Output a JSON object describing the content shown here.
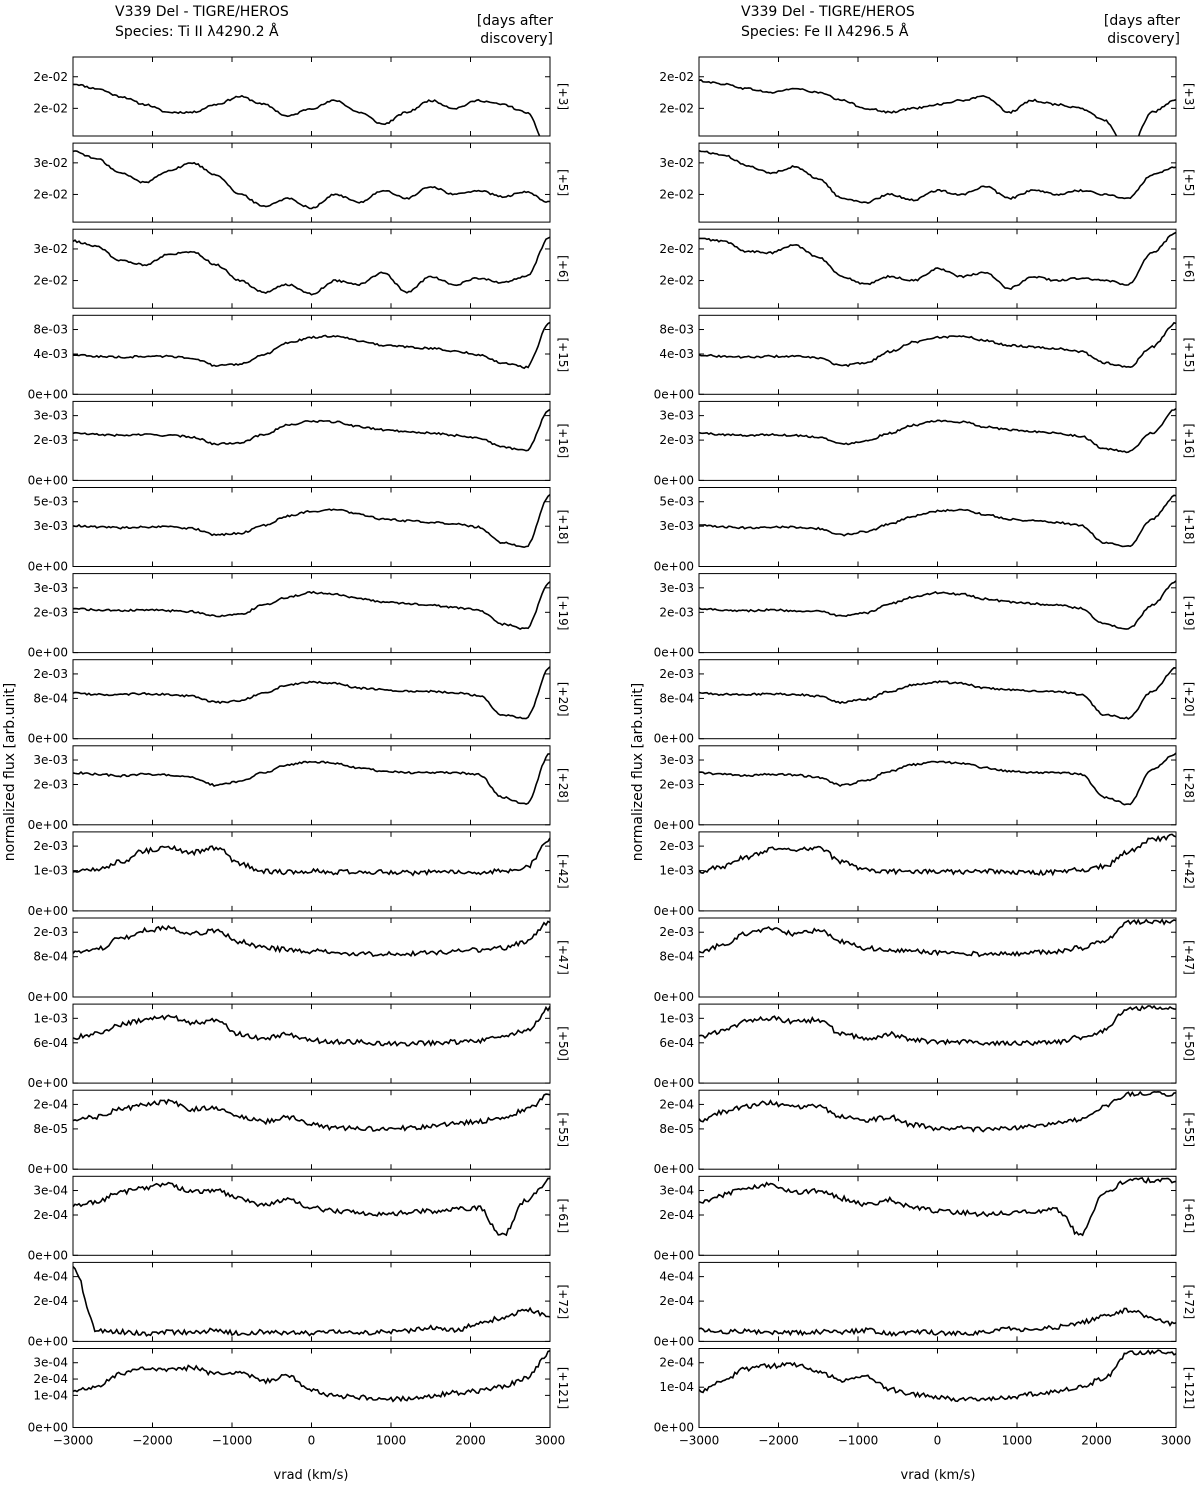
{
  "figure": {
    "ylabel": "normalized flux [arb.unit]",
    "xlabel": "vrad (km/s)",
    "days_label_line1": "[days after",
    "days_label_line2": "discovery]"
  },
  "chart_data": [
    {
      "type": "line",
      "title_line1": "V339 Del - TIGRE/HEROS",
      "title_line2": "Species: Ti II λ4290.2 Å",
      "xlabel": "vrad (km/s)",
      "ylabel": "normalized flux [arb.unit]",
      "xlim": [
        -3000,
        3000
      ],
      "xticks": [
        "−3000",
        "−2000",
        "−1000",
        "0",
        "1000",
        "2000",
        "3000"
      ],
      "panels": [
        {
          "label": "[+3]",
          "yticks": [
            "2e-02",
            "2e-02"
          ],
          "y": [
            0.66,
            0.6,
            0.5,
            0.4,
            0.3,
            0.3,
            0.4,
            0.5,
            0.4,
            0.25,
            0.35,
            0.45,
            0.3,
            0.15,
            0.3,
            0.45,
            0.35,
            0.45,
            0.4,
            0.3,
            -0.2
          ]
        },
        {
          "label": "[+5]",
          "yticks": [
            "3e-02",
            "2e-02"
          ],
          "y": [
            0.9,
            0.8,
            0.62,
            0.5,
            0.65,
            0.75,
            0.6,
            0.35,
            0.2,
            0.3,
            0.18,
            0.35,
            0.25,
            0.4,
            0.3,
            0.45,
            0.35,
            0.4,
            0.32,
            0.38,
            0.25
          ]
        },
        {
          "label": "[+6]",
          "yticks": [
            "3e-02",
            "2e-02"
          ],
          "y": [
            0.85,
            0.78,
            0.6,
            0.55,
            0.68,
            0.72,
            0.55,
            0.35,
            0.2,
            0.3,
            0.18,
            0.35,
            0.3,
            0.45,
            0.2,
            0.4,
            0.3,
            0.38,
            0.32,
            0.4,
            0.9
          ]
        },
        {
          "label": "[+15]",
          "yticks": [
            "8e-03",
            "4e-03",
            "0e+00"
          ],
          "y": [
            0.5,
            0.48,
            0.47,
            0.48,
            0.48,
            0.46,
            0.36,
            0.38,
            0.5,
            0.65,
            0.72,
            0.74,
            0.68,
            0.62,
            0.6,
            0.58,
            0.55,
            0.5,
            0.4,
            0.34,
            0.9
          ]
        },
        {
          "label": "[+16]",
          "yticks": [
            "3e-03",
            "2e-03",
            "0e+00"
          ],
          "y": [
            0.6,
            0.58,
            0.57,
            0.58,
            0.57,
            0.55,
            0.46,
            0.48,
            0.58,
            0.7,
            0.75,
            0.74,
            0.68,
            0.64,
            0.62,
            0.6,
            0.57,
            0.54,
            0.42,
            0.38,
            0.9
          ]
        },
        {
          "label": "[+18]",
          "yticks": [
            "5e-03",
            "3e-03",
            "0e+00"
          ],
          "y": [
            0.52,
            0.5,
            0.49,
            0.5,
            0.5,
            0.48,
            0.4,
            0.42,
            0.52,
            0.64,
            0.7,
            0.72,
            0.66,
            0.6,
            0.58,
            0.56,
            0.54,
            0.5,
            0.3,
            0.25,
            0.9
          ]
        },
        {
          "label": "[+19]",
          "yticks": [
            "3e-03",
            "2e-03",
            "0e+00"
          ],
          "y": [
            0.56,
            0.54,
            0.53,
            0.54,
            0.53,
            0.52,
            0.46,
            0.48,
            0.6,
            0.7,
            0.76,
            0.74,
            0.68,
            0.64,
            0.62,
            0.6,
            0.57,
            0.54,
            0.36,
            0.3,
            0.9
          ]
        },
        {
          "label": "[+20]",
          "yticks": [
            "2e-03",
            "8e-04",
            "0e+00"
          ],
          "y": [
            0.58,
            0.56,
            0.56,
            0.57,
            0.56,
            0.54,
            0.46,
            0.48,
            0.58,
            0.68,
            0.72,
            0.7,
            0.64,
            0.62,
            0.6,
            0.6,
            0.58,
            0.55,
            0.3,
            0.26,
            0.9
          ]
        },
        {
          "label": "[+28]",
          "yticks": [
            "3e-03",
            "2e-03",
            "0e+00"
          ],
          "y": [
            0.66,
            0.64,
            0.62,
            0.64,
            0.63,
            0.6,
            0.5,
            0.55,
            0.66,
            0.76,
            0.8,
            0.78,
            0.72,
            0.68,
            0.66,
            0.66,
            0.66,
            0.64,
            0.35,
            0.26,
            0.9
          ]
        },
        {
          "label": "[+42]",
          "yticks": [
            "2e-03",
            "1e-03",
            "0e+00"
          ],
          "y": [
            0.5,
            0.52,
            0.62,
            0.76,
            0.8,
            0.74,
            0.8,
            0.6,
            0.5,
            0.49,
            0.5,
            0.49,
            0.5,
            0.49,
            0.48,
            0.49,
            0.5,
            0.49,
            0.5,
            0.55,
            0.9
          ]
        },
        {
          "label": "[+47]",
          "yticks": [
            "2e-03",
            "8e-04",
            "0e+00"
          ],
          "y": [
            0.56,
            0.6,
            0.74,
            0.84,
            0.88,
            0.8,
            0.84,
            0.7,
            0.62,
            0.6,
            0.58,
            0.56,
            0.55,
            0.54,
            0.55,
            0.56,
            0.58,
            0.6,
            0.62,
            0.7,
            0.95
          ]
        },
        {
          "label": "[+50]",
          "yticks": [
            "1e-03",
            "6e-04",
            "0e+00"
          ],
          "y": [
            0.58,
            0.62,
            0.74,
            0.8,
            0.84,
            0.76,
            0.8,
            0.62,
            0.56,
            0.62,
            0.54,
            0.52,
            0.52,
            0.5,
            0.5,
            0.51,
            0.52,
            0.54,
            0.58,
            0.66,
            0.95
          ]
        },
        {
          "label": "[+55]",
          "yticks": [
            "2e-04",
            "8e-05",
            "0e+00"
          ],
          "y": [
            0.62,
            0.66,
            0.76,
            0.82,
            0.86,
            0.76,
            0.78,
            0.66,
            0.6,
            0.66,
            0.56,
            0.52,
            0.52,
            0.5,
            0.52,
            0.54,
            0.58,
            0.6,
            0.66,
            0.75,
            0.95
          ]
        },
        {
          "label": "[+61]",
          "yticks": [
            "3e-04",
            "2e-04",
            "0e+00"
          ],
          "y": [
            0.62,
            0.68,
            0.8,
            0.86,
            0.9,
            0.8,
            0.82,
            0.72,
            0.64,
            0.7,
            0.6,
            0.56,
            0.54,
            0.52,
            0.54,
            0.56,
            0.58,
            0.6,
            0.25,
            0.7,
            0.95
          ]
        },
        {
          "label": "[+72]",
          "yticks": [
            "4e-04",
            "2e-04",
            "0e+00"
          ],
          "y": [
            0.95,
            0.14,
            0.12,
            0.1,
            0.12,
            0.11,
            0.14,
            0.1,
            0.12,
            0.11,
            0.1,
            0.12,
            0.11,
            0.12,
            0.13,
            0.18,
            0.14,
            0.22,
            0.3,
            0.4,
            0.32
          ]
        },
        {
          "label": "[+121]",
          "yticks": [
            "3e-04",
            "2e-04",
            "1e-04",
            "0e+00"
          ],
          "y": [
            0.46,
            0.52,
            0.68,
            0.74,
            0.72,
            0.76,
            0.68,
            0.7,
            0.58,
            0.66,
            0.46,
            0.4,
            0.38,
            0.36,
            0.36,
            0.4,
            0.44,
            0.46,
            0.52,
            0.62,
            0.95
          ]
        }
      ]
    },
    {
      "type": "line",
      "title_line1": "V339 Del - TIGRE/HEROS",
      "title_line2": "Species: Fe II λ4296.5 Å",
      "xlabel": "vrad (km/s)",
      "ylabel": "normalized flux [arb.unit]",
      "xlim": [
        -3000,
        3000
      ],
      "xticks": [
        "−3000",
        "−2000",
        "−1000",
        "0",
        "1000",
        "2000",
        "3000"
      ],
      "panels": [
        {
          "label": "[+3]",
          "yticks": [
            "2e-02",
            "2e-02"
          ],
          "y": [
            0.7,
            0.66,
            0.6,
            0.55,
            0.6,
            0.55,
            0.45,
            0.35,
            0.3,
            0.35,
            0.4,
            0.45,
            0.5,
            0.3,
            0.45,
            0.4,
            0.35,
            0.2,
            -0.2,
            0.3,
            0.45
          ]
        },
        {
          "label": "[+5]",
          "yticks": [
            "3e-02",
            "2e-02"
          ],
          "y": [
            0.9,
            0.85,
            0.72,
            0.62,
            0.7,
            0.55,
            0.3,
            0.25,
            0.35,
            0.28,
            0.4,
            0.35,
            0.45,
            0.3,
            0.4,
            0.35,
            0.4,
            0.35,
            0.3,
            0.6,
            0.7
          ]
        },
        {
          "label": "[+6]",
          "yticks": [
            "2e-02",
            "2e-02"
          ],
          "y": [
            0.88,
            0.85,
            0.72,
            0.7,
            0.8,
            0.65,
            0.4,
            0.3,
            0.4,
            0.35,
            0.5,
            0.4,
            0.45,
            0.25,
            0.4,
            0.35,
            0.38,
            0.35,
            0.3,
            0.7,
            0.95
          ]
        },
        {
          "label": "[+15]",
          "yticks": [
            "8e-03",
            "4e-03",
            "0e+00"
          ],
          "y": [
            0.5,
            0.48,
            0.47,
            0.48,
            0.48,
            0.46,
            0.36,
            0.4,
            0.54,
            0.66,
            0.72,
            0.74,
            0.68,
            0.62,
            0.6,
            0.58,
            0.54,
            0.4,
            0.34,
            0.6,
            0.9
          ]
        },
        {
          "label": "[+16]",
          "yticks": [
            "3e-03",
            "2e-03",
            "0e+00"
          ],
          "y": [
            0.6,
            0.58,
            0.57,
            0.58,
            0.57,
            0.55,
            0.46,
            0.5,
            0.6,
            0.7,
            0.75,
            0.74,
            0.68,
            0.64,
            0.62,
            0.6,
            0.56,
            0.4,
            0.36,
            0.6,
            0.9
          ]
        },
        {
          "label": "[+18]",
          "yticks": [
            "5e-03",
            "3e-03",
            "0e+00"
          ],
          "y": [
            0.52,
            0.5,
            0.49,
            0.5,
            0.5,
            0.48,
            0.4,
            0.44,
            0.54,
            0.64,
            0.7,
            0.72,
            0.66,
            0.6,
            0.58,
            0.56,
            0.52,
            0.3,
            0.25,
            0.6,
            0.9
          ]
        },
        {
          "label": "[+19]",
          "yticks": [
            "3e-03",
            "2e-03",
            "0e+00"
          ],
          "y": [
            0.56,
            0.54,
            0.53,
            0.54,
            0.53,
            0.52,
            0.46,
            0.5,
            0.62,
            0.7,
            0.76,
            0.74,
            0.68,
            0.64,
            0.62,
            0.6,
            0.56,
            0.36,
            0.3,
            0.6,
            0.9
          ]
        },
        {
          "label": "[+20]",
          "yticks": [
            "2e-03",
            "8e-04",
            "0e+00"
          ],
          "y": [
            0.58,
            0.56,
            0.56,
            0.57,
            0.56,
            0.54,
            0.46,
            0.5,
            0.6,
            0.68,
            0.72,
            0.7,
            0.64,
            0.62,
            0.6,
            0.6,
            0.56,
            0.3,
            0.26,
            0.6,
            0.9
          ]
        },
        {
          "label": "[+28]",
          "yticks": [
            "3e-03",
            "2e-03",
            "0e+00"
          ],
          "y": [
            0.66,
            0.64,
            0.62,
            0.64,
            0.63,
            0.6,
            0.5,
            0.56,
            0.68,
            0.76,
            0.8,
            0.78,
            0.72,
            0.68,
            0.66,
            0.66,
            0.64,
            0.35,
            0.26,
            0.7,
            0.9
          ]
        },
        {
          "label": "[+42]",
          "yticks": [
            "2e-03",
            "1e-03",
            "0e+00"
          ],
          "y": [
            0.5,
            0.56,
            0.68,
            0.78,
            0.76,
            0.8,
            0.62,
            0.52,
            0.5,
            0.49,
            0.5,
            0.49,
            0.5,
            0.49,
            0.48,
            0.49,
            0.52,
            0.56,
            0.75,
            0.9,
            0.95
          ]
        },
        {
          "label": "[+47]",
          "yticks": [
            "2e-03",
            "8e-04",
            "0e+00"
          ],
          "y": [
            0.56,
            0.66,
            0.8,
            0.86,
            0.8,
            0.84,
            0.7,
            0.62,
            0.6,
            0.58,
            0.56,
            0.55,
            0.54,
            0.55,
            0.56,
            0.58,
            0.62,
            0.7,
            0.95,
            0.95,
            0.95
          ]
        },
        {
          "label": "[+50]",
          "yticks": [
            "1e-03",
            "6e-04",
            "0e+00"
          ],
          "y": [
            0.58,
            0.66,
            0.78,
            0.82,
            0.78,
            0.8,
            0.62,
            0.56,
            0.62,
            0.54,
            0.52,
            0.52,
            0.5,
            0.5,
            0.51,
            0.52,
            0.58,
            0.66,
            0.95,
            0.95,
            0.95
          ]
        },
        {
          "label": "[+55]",
          "yticks": [
            "2e-04",
            "8e-05",
            "0e+00"
          ],
          "y": [
            0.62,
            0.72,
            0.8,
            0.84,
            0.78,
            0.8,
            0.66,
            0.62,
            0.66,
            0.56,
            0.52,
            0.52,
            0.5,
            0.52,
            0.54,
            0.58,
            0.62,
            0.8,
            0.95,
            0.95,
            0.95
          ]
        },
        {
          "label": "[+61]",
          "yticks": [
            "3e-04",
            "2e-04",
            "0e+00"
          ],
          "y": [
            0.66,
            0.76,
            0.86,
            0.9,
            0.8,
            0.82,
            0.72,
            0.64,
            0.7,
            0.6,
            0.56,
            0.54,
            0.52,
            0.54,
            0.56,
            0.58,
            0.25,
            0.8,
            0.95,
            0.95,
            0.95
          ]
        },
        {
          "label": "[+72]",
          "yticks": [
            "4e-04",
            "2e-04",
            "0e+00"
          ],
          "y": [
            0.14,
            0.12,
            0.13,
            0.12,
            0.11,
            0.12,
            0.12,
            0.14,
            0.1,
            0.12,
            0.11,
            0.1,
            0.12,
            0.16,
            0.14,
            0.18,
            0.24,
            0.32,
            0.4,
            0.3,
            0.22
          ]
        },
        {
          "label": "[+121]",
          "yticks": [
            "2e-04",
            "1e-04",
            "0e+00"
          ],
          "y": [
            0.46,
            0.6,
            0.74,
            0.78,
            0.8,
            0.7,
            0.6,
            0.66,
            0.48,
            0.42,
            0.38,
            0.36,
            0.36,
            0.38,
            0.42,
            0.46,
            0.52,
            0.62,
            0.95,
            0.95,
            0.95
          ]
        }
      ]
    }
  ]
}
